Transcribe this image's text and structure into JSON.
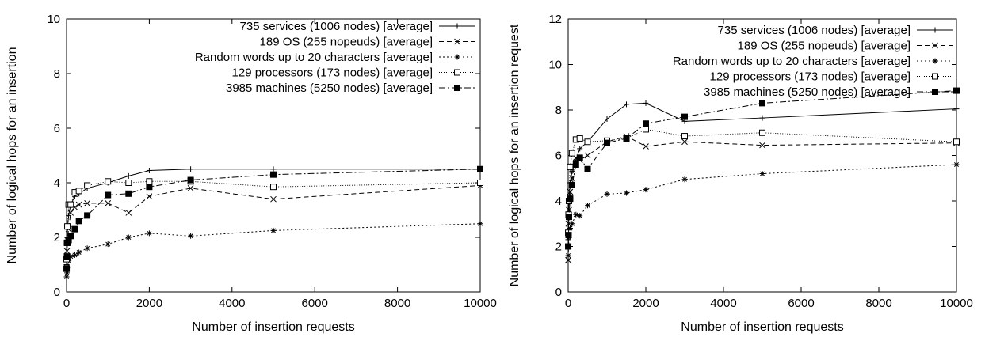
{
  "chart_data": [
    {
      "type": "line",
      "xlabel": "Number of insertion requests",
      "ylabel": "Number of logical hops for an insertion",
      "xlim": [
        0,
        10000
      ],
      "ylim": [
        0,
        10
      ],
      "xticks": [
        0,
        2000,
        4000,
        6000,
        8000,
        10000
      ],
      "yticks": [
        0,
        2,
        4,
        6,
        8,
        10
      ],
      "grid": false,
      "legend_position": "top-right",
      "series": [
        {
          "name": "735 services (1006 nodes) [average]",
          "marker": "plus",
          "dash": "solid",
          "x": [
            1,
            10,
            20,
            50,
            100,
            200,
            300,
            500,
            1000,
            1500,
            2000,
            3000,
            5000,
            10000
          ],
          "y": [
            1.0,
            1.9,
            2.3,
            2.8,
            3.2,
            3.5,
            3.6,
            3.8,
            4.0,
            4.25,
            4.45,
            4.5,
            4.5,
            4.5
          ]
        },
        {
          "name": "189 OS (255 nopeuds) [average]",
          "marker": "x",
          "dash": "dashed",
          "x": [
            1,
            10,
            20,
            50,
            100,
            200,
            300,
            500,
            1000,
            1500,
            2000,
            3000,
            5000,
            10000
          ],
          "y": [
            0.9,
            1.5,
            1.9,
            2.3,
            2.9,
            3.1,
            3.2,
            3.25,
            3.25,
            2.9,
            3.5,
            3.8,
            3.4,
            3.9
          ]
        },
        {
          "name": "Random words up to 20 characters [average]",
          "marker": "star",
          "dash": "dotted",
          "x": [
            1,
            10,
            20,
            50,
            100,
            200,
            300,
            500,
            1000,
            1500,
            2000,
            3000,
            5000,
            10000
          ],
          "y": [
            0.55,
            0.7,
            0.9,
            1.15,
            1.3,
            1.35,
            1.45,
            1.6,
            1.75,
            2.0,
            2.15,
            2.05,
            2.25,
            2.5
          ]
        },
        {
          "name": "129 processors (173 nodes) [average]",
          "marker": "open-square",
          "dash": "finedotted",
          "x": [
            1,
            10,
            20,
            50,
            100,
            200,
            300,
            500,
            1000,
            1500,
            2000,
            3000,
            5000,
            10000
          ],
          "y": [
            1.2,
            1.8,
            2.4,
            3.2,
            3.2,
            3.65,
            3.7,
            3.9,
            4.05,
            4.0,
            4.05,
            4.05,
            3.85,
            4.0
          ]
        },
        {
          "name": "3985 machines (5250 nodes) [average]",
          "marker": "filled-square",
          "dash": "dashdot",
          "x": [
            1,
            10,
            20,
            50,
            100,
            200,
            300,
            500,
            1000,
            1500,
            2000,
            3000,
            5000,
            10000
          ],
          "y": [
            0.85,
            1.3,
            1.8,
            1.9,
            2.05,
            2.3,
            2.6,
            2.8,
            3.55,
            3.6,
            3.85,
            4.1,
            4.3,
            4.5
          ]
        }
      ]
    },
    {
      "type": "line",
      "xlabel": "Number of insertion requests",
      "ylabel": "Number of logical hops for an insertion request",
      "xlim": [
        0,
        10000
      ],
      "ylim": [
        0,
        12
      ],
      "xticks": [
        0,
        2000,
        4000,
        6000,
        8000,
        10000
      ],
      "yticks": [
        0,
        2,
        4,
        6,
        8,
        10,
        12
      ],
      "grid": false,
      "legend_position": "top-right",
      "series": [
        {
          "name": "735 services (1006 nodes) [average]",
          "marker": "plus",
          "dash": "solid",
          "x": [
            1,
            10,
            20,
            50,
            100,
            200,
            300,
            500,
            1000,
            1500,
            2000,
            3000,
            5000,
            10000
          ],
          "y": [
            2.3,
            3.5,
            4.0,
            4.8,
            5.3,
            5.8,
            6.3,
            6.6,
            7.6,
            8.25,
            8.3,
            7.5,
            7.65,
            8.05
          ]
        },
        {
          "name": "189 OS (255 nopeuds) [average]",
          "marker": "x",
          "dash": "dashed",
          "x": [
            1,
            10,
            20,
            50,
            100,
            200,
            300,
            500,
            1000,
            1500,
            2000,
            3000,
            5000,
            10000
          ],
          "y": [
            1.4,
            3.0,
            3.6,
            4.4,
            5.0,
            5.9,
            5.8,
            6.0,
            6.6,
            6.85,
            6.4,
            6.6,
            6.45,
            6.55
          ]
        },
        {
          "name": "Random words up to 20 characters [average]",
          "marker": "star",
          "dash": "dotted",
          "x": [
            1,
            10,
            20,
            50,
            100,
            200,
            300,
            500,
            1000,
            1500,
            2000,
            3000,
            5000,
            10000
          ],
          "y": [
            1.6,
            2.0,
            2.4,
            2.8,
            3.0,
            3.4,
            3.35,
            3.8,
            4.3,
            4.35,
            4.5,
            4.95,
            5.2,
            5.6
          ]
        },
        {
          "name": "129 processors (173 nodes) [average]",
          "marker": "open-square",
          "dash": "finedotted",
          "x": [
            1,
            10,
            20,
            50,
            100,
            200,
            300,
            500,
            1000,
            1500,
            2000,
            3000,
            5000,
            10000
          ],
          "y": [
            2.6,
            3.4,
            4.0,
            5.5,
            6.1,
            6.7,
            6.75,
            6.6,
            6.65,
            6.75,
            7.15,
            6.85,
            7.0,
            6.6
          ]
        },
        {
          "name": "3985 machines (5250 nodes) [average]",
          "marker": "filled-square",
          "dash": "dashdot",
          "x": [
            1,
            10,
            20,
            50,
            100,
            200,
            300,
            500,
            1000,
            1500,
            2000,
            3000,
            5000,
            10000
          ],
          "y": [
            2.0,
            2.5,
            3.3,
            4.1,
            4.7,
            5.6,
            5.9,
            5.4,
            6.55,
            6.75,
            7.4,
            7.7,
            8.3,
            8.85
          ]
        }
      ]
    }
  ]
}
